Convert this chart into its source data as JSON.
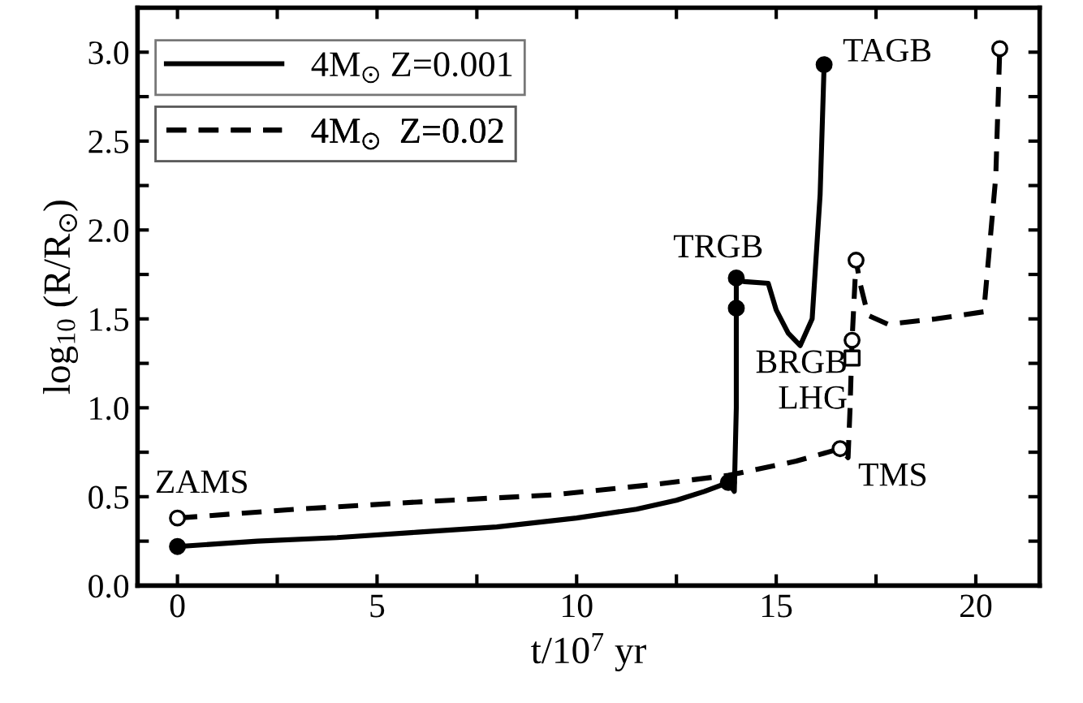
{
  "chart_data": {
    "type": "line",
    "xlabel": "t/10$^{7}$ yr",
    "ylabel": "log$_{10}$ (R/R$_{⊙}$)",
    "xlim": [
      -1.0,
      21.6
    ],
    "ylim": [
      0,
      3.25
    ],
    "xticks": [
      0,
      {
        "value": 2.5,
        "label": null
      },
      5,
      {
        "value": 7.5,
        "label": null
      },
      10,
      {
        "value": 12.5,
        "label": null
      },
      15,
      {
        "value": 17.5,
        "label": null
      },
      20
    ],
    "yticks": [
      {
        "value": 0,
        "label": "0.0"
      },
      {
        "value": 0.25,
        "label": null
      },
      0.5,
      {
        "value": 0.75,
        "label": null
      },
      {
        "value": 1,
        "label": "1.0"
      },
      {
        "value": 1.25,
        "label": null
      },
      1.5,
      {
        "value": 1.75,
        "label": null
      },
      {
        "value": 2,
        "label": "2.0"
      },
      {
        "value": 2.25,
        "label": null
      },
      2.5,
      {
        "value": 2.75,
        "label": null
      },
      {
        "value": 3,
        "label": "3.0"
      }
    ],
    "grid": false,
    "legend": "top left",
    "series": [
      {
        "name": "4M$_{⊙}$ Z=0.001",
        "line_style": "solid",
        "color": "#000000",
        "x": [
          0,
          2,
          4,
          6,
          8,
          10,
          11.5,
          12.5,
          13.2,
          13.8,
          13.95,
          14.0,
          14.0,
          14.2,
          14.8,
          15.0,
          15.3,
          15.6,
          15.9,
          16.1,
          16.2
        ],
        "values": [
          0.22,
          0.25,
          0.27,
          0.3,
          0.33,
          0.38,
          0.43,
          0.48,
          0.53,
          0.58,
          0.53,
          1.0,
          1.73,
          1.71,
          1.7,
          1.55,
          1.42,
          1.35,
          1.5,
          2.2,
          2.93
        ]
      },
      {
        "name": "4M$_{⊙}$  Z=0.02",
        "line_style": "dashed",
        "color": "#000000",
        "x": [
          0,
          3,
          6,
          9.4,
          12,
          13.8,
          15.5,
          16.6,
          16.8,
          16.85,
          16.9,
          17.0,
          17.1,
          17.3,
          17.8,
          19,
          20.2,
          20.5,
          20.6
        ],
        "values": [
          0.38,
          0.43,
          0.47,
          0.51,
          0.57,
          0.62,
          0.7,
          0.77,
          0.72,
          1.0,
          1.38,
          1.83,
          1.7,
          1.52,
          1.47,
          1.5,
          1.54,
          2.3,
          3.02
        ]
      },
      {
        "type": "scatter",
        "marker": "circle",
        "color": "#000000",
        "x": [
          0,
          13.8,
          14.0,
          14.0,
          16.2
        ],
        "values": [
          0.22,
          0.58,
          1.56,
          1.73,
          2.93
        ]
      },
      {
        "type": "scatter",
        "marker": "circle",
        "color": "#ffffff",
        "x": [
          0,
          16.6,
          16.9,
          17.0,
          20.6
        ],
        "values": [
          0.38,
          0.77,
          1.38,
          1.83,
          3.02
        ]
      },
      {
        "type": "scatter",
        "marker": "square",
        "color": "#ffffff",
        "x": [
          16.9
        ],
        "values": [
          1.28
        ]
      }
    ],
    "annotations": [
      {
        "text": "ZAMS",
        "x": 0,
        "y": 0.38
      },
      {
        "text": "TRGB",
        "x": 14.0,
        "y": 1.73
      },
      {
        "text": "BRGB",
        "x": 16.9,
        "y": 1.38
      },
      {
        "text": "LHG",
        "x": 16.9,
        "y": 1.28
      },
      {
        "text": "TMS",
        "x": 16.6,
        "y": 0.77
      },
      {
        "text": "TAGB",
        "x": 20.6,
        "y": 3.02
      }
    ]
  }
}
